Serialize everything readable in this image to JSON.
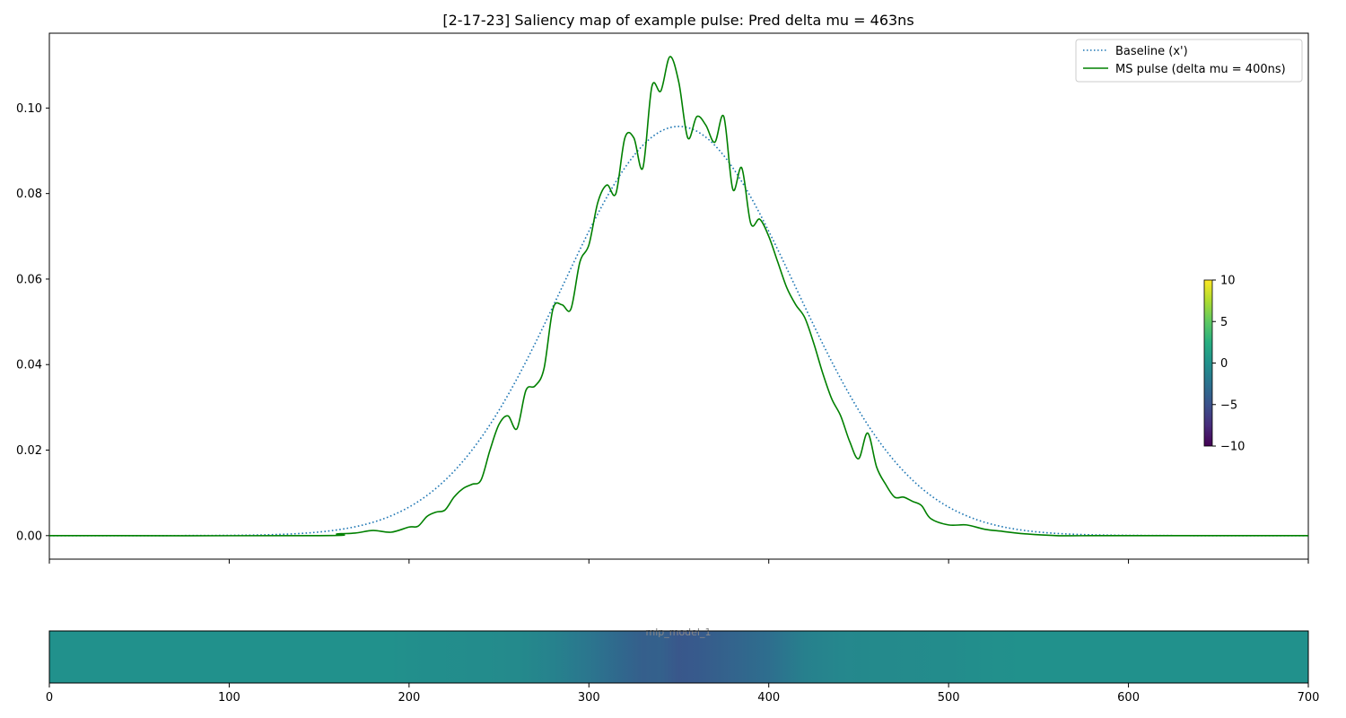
{
  "chart_data": [
    {
      "type": "line",
      "title": "[2-17-23] Saliency map of example pulse: Pred delta mu = 463ns",
      "xlabel": "",
      "ylabel": "",
      "xlim": [
        0,
        700
      ],
      "ylim": [
        -0.0055,
        0.1175
      ],
      "yticks": [
        0.0,
        0.02,
        0.04,
        0.06,
        0.08,
        0.1
      ],
      "ytick_labels": [
        "0.00",
        "0.02",
        "0.04",
        "0.06",
        "0.08",
        "0.10"
      ],
      "xticks": [
        0,
        100,
        200,
        300,
        400,
        500,
        600,
        700
      ],
      "xtick_labels_shown": false,
      "grid": false,
      "legend_position": "top-right",
      "series": [
        {
          "name": "Baseline (x')",
          "style": "dotted",
          "color": "#1f77b4",
          "gaussian": {
            "amplitude": 0.0957,
            "center": 350,
            "sigma": 65
          }
        },
        {
          "name": "MS pulse (delta mu = 400ns)",
          "style": "solid",
          "color": "#008000",
          "x": [
            0,
            150,
            160,
            170,
            180,
            190,
            200,
            205,
            210,
            215,
            220,
            225,
            230,
            235,
            240,
            245,
            250,
            255,
            260,
            265,
            270,
            275,
            280,
            285,
            290,
            295,
            300,
            305,
            310,
            315,
            320,
            325,
            330,
            335,
            340,
            345,
            350,
            355,
            360,
            365,
            370,
            375,
            380,
            385,
            390,
            395,
            400,
            405,
            410,
            415,
            420,
            425,
            430,
            435,
            440,
            445,
            450,
            455,
            460,
            465,
            470,
            475,
            480,
            485,
            490,
            500,
            510,
            520,
            530,
            540,
            560,
            580,
            600,
            700
          ],
          "y": [
            0.0,
            0.0,
            0.0004,
            0.0006,
            0.0012,
            0.0008,
            0.002,
            0.0022,
            0.0045,
            0.0055,
            0.006,
            0.009,
            0.011,
            0.012,
            0.013,
            0.02,
            0.026,
            0.028,
            0.025,
            0.034,
            0.035,
            0.039,
            0.053,
            0.054,
            0.053,
            0.064,
            0.068,
            0.078,
            0.082,
            0.08,
            0.093,
            0.093,
            0.086,
            0.105,
            0.104,
            0.112,
            0.106,
            0.093,
            0.098,
            0.096,
            0.092,
            0.098,
            0.081,
            0.086,
            0.073,
            0.074,
            0.07,
            0.064,
            0.058,
            0.054,
            0.051,
            0.045,
            0.038,
            0.032,
            0.028,
            0.022,
            0.018,
            0.024,
            0.016,
            0.012,
            0.009,
            0.009,
            0.008,
            0.007,
            0.004,
            0.0025,
            0.0025,
            0.0015,
            0.001,
            0.0005,
            0.0,
            0.0,
            0.0,
            0.0
          ]
        }
      ],
      "colorbar": {
        "range": [
          -10,
          10
        ],
        "ticks": [
          10,
          5,
          0,
          -5,
          -10
        ],
        "tick_labels": [
          "10",
          "5",
          "0",
          "−5",
          "−10"
        ],
        "colormap": "viridis"
      }
    },
    {
      "type": "heatmap",
      "title": "",
      "xlim": [
        0,
        700
      ],
      "xticks": [
        0,
        100,
        200,
        300,
        400,
        500,
        600,
        700
      ],
      "xtick_labels": [
        "0",
        "100",
        "200",
        "300",
        "400",
        "500",
        "600",
        "700"
      ],
      "faint_label": "mlp_model_1",
      "colormap": "viridis",
      "value_range": [
        -10,
        10
      ],
      "x": [
        0,
        190,
        200,
        240,
        260,
        280,
        300,
        320,
        330,
        340,
        350,
        360,
        370,
        380,
        390,
        400,
        420,
        440,
        460,
        500,
        520,
        540,
        700
      ],
      "values": [
        0.0,
        0.0,
        -0.2,
        -0.4,
        -0.6,
        -1.2,
        -2.2,
        -3.4,
        -4.0,
        -3.8,
        -4.6,
        -4.4,
        -4.0,
        -3.6,
        -3.2,
        -2.8,
        -1.4,
        -0.8,
        -0.6,
        -0.4,
        -0.2,
        0.0,
        0.0
      ]
    }
  ]
}
